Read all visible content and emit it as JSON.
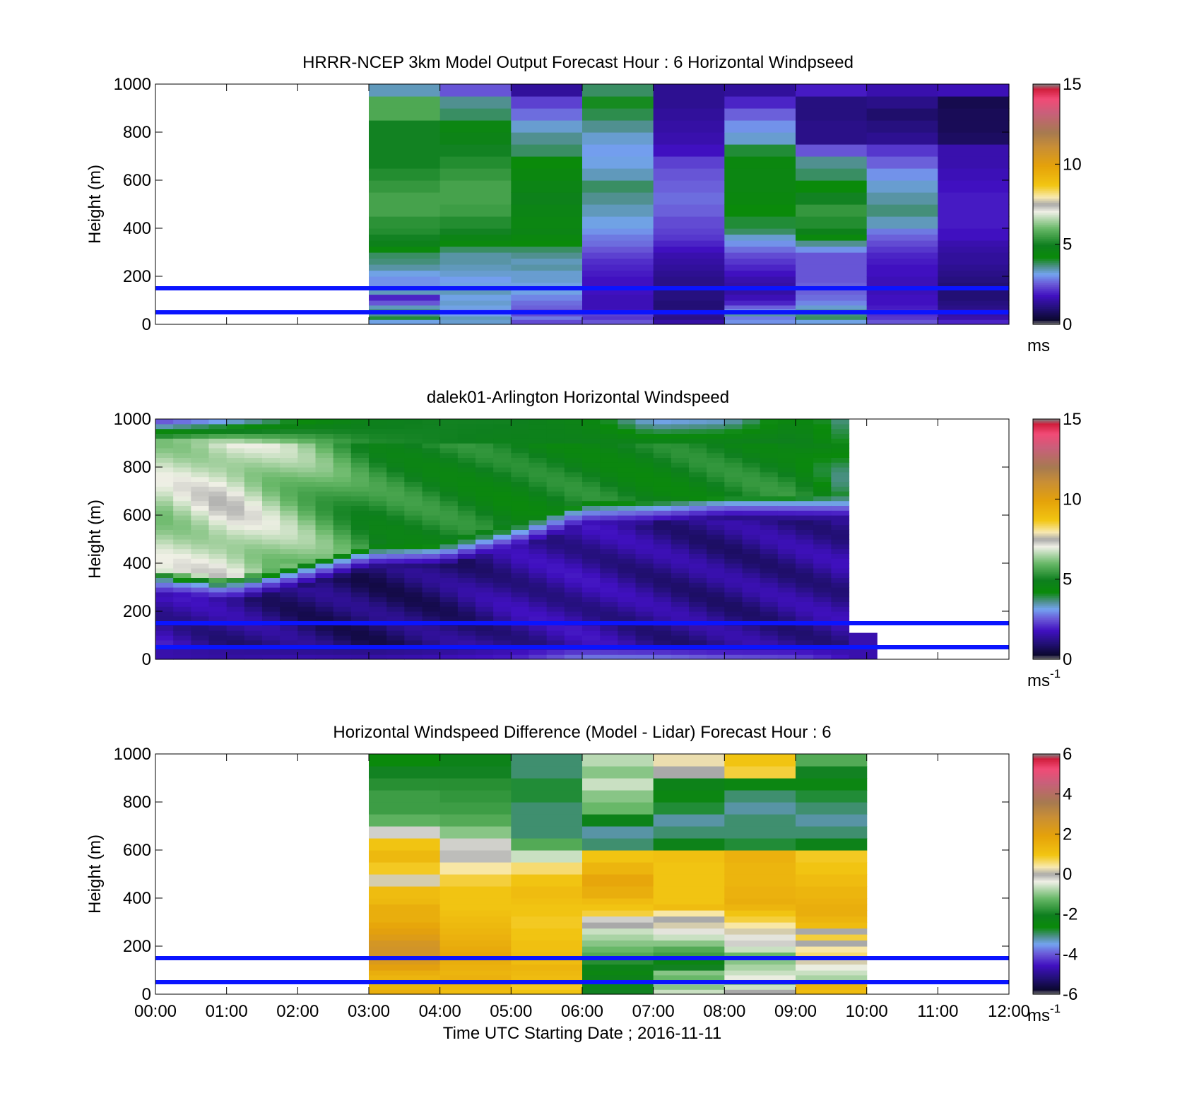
{
  "figure": {
    "xlabel": "Time UTC  Starting Date ; 2016-11-11",
    "reference_lines_m": [
      50,
      150
    ],
    "reference_line_color": "#0a14ff"
  },
  "chart_data": [
    {
      "type": "heatmap",
      "title": "HRRR-NCEP 3km Model Output   Forecast Hour : 6 Horizontal Windpseed",
      "ylabel": "Height (m)",
      "x_ticks": [
        "00:00",
        "01:00",
        "02:00",
        "03:00",
        "04:00",
        "05:00",
        "06:00",
        "07:00",
        "08:00",
        "09:00",
        "10:00",
        "11:00",
        "12:00"
      ],
      "y_ticks": [
        "0",
        "200",
        "400",
        "600",
        "800",
        "1000"
      ],
      "xlim_hours": [
        0,
        12
      ],
      "ylim": [
        0,
        1000
      ],
      "colorbar": {
        "ticks": [
          "0",
          "5",
          "10",
          "15"
        ],
        "tick_values": [
          0,
          5,
          10,
          15
        ],
        "unit": "ms",
        "unit_sup": "",
        "range": [
          0,
          15
        ]
      },
      "x_start_hours": [
        3,
        4,
        5,
        6,
        7,
        8,
        9,
        10,
        11
      ],
      "column_width_hours": 1,
      "height_levels_m": [
        20,
        35,
        50,
        65,
        80,
        100,
        125,
        150,
        175,
        200,
        225,
        250,
        275,
        300,
        325,
        350,
        375,
        400,
        450,
        500,
        550,
        600,
        650,
        700,
        750,
        800,
        850,
        900,
        950,
        1000
      ],
      "values": [
        [
          3.2,
          4.0,
          3.6,
          3.7,
          3.4,
          2.5,
          2.0,
          3.4,
          3.0,
          3.0,
          3.2,
          3.5,
          3.7,
          3.8,
          4.3,
          4.8,
          5.0,
          5.2,
          5.3,
          5.6,
          5.6,
          5.4,
          5.2,
          5.0,
          5.0,
          5.0,
          5.0,
          5.7,
          5.7,
          3.4
        ],
        [
          3.3,
          3.4,
          3.1,
          3.0,
          3.2,
          3.3,
          3.2,
          3.4,
          3.2,
          3.1,
          3.3,
          3.4,
          3.5,
          3.5,
          3.8,
          4.3,
          4.6,
          5.0,
          5.2,
          5.5,
          5.6,
          5.6,
          5.4,
          5.2,
          5.0,
          4.7,
          4.5,
          3.8,
          3.6,
          2.5
        ],
        [
          2.4,
          2.8,
          2.4,
          2.4,
          2.6,
          2.7,
          2.9,
          3.2,
          3.2,
          3.3,
          3.3,
          3.5,
          3.4,
          3.6,
          3.8,
          4.2,
          4.4,
          4.6,
          4.5,
          4.6,
          4.8,
          4.6,
          4.4,
          4.2,
          3.8,
          3.6,
          3.3,
          2.7,
          2.3,
          1.4
        ],
        [
          2.5,
          2.2,
          2.3,
          1.8,
          1.7,
          1.7,
          1.7,
          1.8,
          1.8,
          1.8,
          1.9,
          2.0,
          2.1,
          2.3,
          2.5,
          2.7,
          2.8,
          3.0,
          3.2,
          3.4,
          3.6,
          3.8,
          3.4,
          3.2,
          3.1,
          3.3,
          3.6,
          3.9,
          4.1,
          3.8
        ],
        [
          1.5,
          1.2,
          1.3,
          1.1,
          1.0,
          1.0,
          1.1,
          1.1,
          1.2,
          1.2,
          1.3,
          1.4,
          1.5,
          1.6,
          1.8,
          2.0,
          2.2,
          2.3,
          2.4,
          2.6,
          2.7,
          2.6,
          2.5,
          2.3,
          1.8,
          1.6,
          1.5,
          1.4,
          1.3,
          1.3
        ],
        [
          3.0,
          2.8,
          3.5,
          3.0,
          2.6,
          2.0,
          1.7,
          1.5,
          1.5,
          1.6,
          1.8,
          2.0,
          2.2,
          2.4,
          2.7,
          3.0,
          3.3,
          3.8,
          4.0,
          4.2,
          4.4,
          4.5,
          4.5,
          4.4,
          4.0,
          3.3,
          3.0,
          2.6,
          2.0,
          1.4
        ],
        [
          3.2,
          3.8,
          3.7,
          3.5,
          3.3,
          2.9,
          2.7,
          2.6,
          2.6,
          2.5,
          2.5,
          2.5,
          2.5,
          2.5,
          3.0,
          3.6,
          4.3,
          4.8,
          5.2,
          5.4,
          5.0,
          4.2,
          3.8,
          3.6,
          2.5,
          1.2,
          1.2,
          1.1,
          1.1,
          1.9
        ],
        [
          2.5,
          2.2,
          2.1,
          2.0,
          1.9,
          1.8,
          1.8,
          1.7,
          1.7,
          1.7,
          1.8,
          1.8,
          1.9,
          2.0,
          2.2,
          2.4,
          2.6,
          2.8,
          3.4,
          3.7,
          3.5,
          3.3,
          3.0,
          2.6,
          2.2,
          1.3,
          1.1,
          0.9,
          1.2,
          1.6
        ],
        [
          2.0,
          1.6,
          1.5,
          1.4,
          1.2,
          1.1,
          1.0,
          1.0,
          1.0,
          1.1,
          1.2,
          1.3,
          1.4,
          1.4,
          1.5,
          1.6,
          1.8,
          1.8,
          1.9,
          1.9,
          1.9,
          1.8,
          1.7,
          1.6,
          1.6,
          0.8,
          0.7,
          0.7,
          0.6,
          1.7
        ]
      ]
    },
    {
      "type": "heatmap",
      "title": "dalek01-Arlington  Horizontal Windspeed",
      "ylabel": "Height (m)",
      "x_ticks": [
        "00:00",
        "01:00",
        "02:00",
        "03:00",
        "04:00",
        "05:00",
        "06:00",
        "07:00",
        "08:00",
        "09:00",
        "10:00",
        "11:00",
        "12:00"
      ],
      "y_ticks": [
        "0",
        "200",
        "400",
        "600",
        "800",
        "1000"
      ],
      "xlim_hours": [
        0,
        12
      ],
      "ylim": [
        0,
        1000
      ],
      "colorbar": {
        "ticks": [
          "0",
          "5",
          "10",
          "15"
        ],
        "tick_values": [
          0,
          5,
          10,
          15
        ],
        "unit": "ms",
        "unit_sup": "-1",
        "range": [
          0,
          15
        ]
      },
      "time_step_hours": 0.25,
      "time_end_hours": 9.75,
      "layer_height_m": 20,
      "profile": {
        "sample_hours": [
          0,
          1,
          2,
          3,
          4,
          5,
          6,
          7,
          8,
          9,
          9.75
        ],
        "transition_height_m": [
          330,
          300,
          360,
          440,
          450,
          520,
          620,
          630,
          650,
          650,
          650
        ],
        "upper_speed": [
          6.5,
          7.0,
          6.2,
          5.2,
          5.0,
          4.8,
          4.9,
          4.8,
          4.9,
          5.0,
          4.0
        ],
        "upper_top_speed": [
          2.0,
          2.8,
          4.0,
          4.8,
          5.0,
          5.0,
          4.6,
          3.0,
          3.2,
          4.6,
          3.5
        ],
        "lower_speed": [
          1.6,
          1.3,
          1.0,
          0.9,
          1.0,
          1.4,
          1.5,
          1.3,
          1.2,
          1.3,
          1.4
        ],
        "surface_speed": [
          1.6,
          1.5,
          1.7,
          1.6,
          1.8,
          2.0,
          3.0,
          3.0,
          2.7,
          2.5,
          1.8
        ]
      },
      "extra_segment": {
        "start_hours": 9.75,
        "end_hours": 10.15,
        "top_m": 110,
        "speed": 1.6
      }
    },
    {
      "type": "heatmap",
      "title": "Horizontal Windspeed Difference (Model - Lidar) Forecast Hour : 6",
      "ylabel": "Height (m)",
      "x_ticks": [
        "00:00",
        "01:00",
        "02:00",
        "03:00",
        "04:00",
        "05:00",
        "06:00",
        "07:00",
        "08:00",
        "09:00",
        "10:00",
        "11:00",
        "12:00"
      ],
      "y_ticks": [
        "0",
        "200",
        "400",
        "600",
        "800",
        "1000"
      ],
      "xlim_hours": [
        0,
        12
      ],
      "ylim": [
        0,
        1000
      ],
      "colorbar": {
        "ticks": [
          "-6",
          "-4",
          "-2",
          "0",
          "2",
          "4",
          "6"
        ],
        "tick_values": [
          -6,
          -4,
          -2,
          0,
          2,
          4,
          6
        ],
        "unit": "ms",
        "unit_sup": "-1",
        "range": [
          -6,
          6
        ]
      },
      "x_start_hours": [
        3,
        4,
        5,
        6,
        7,
        8,
        9
      ],
      "column_width_hours": 1,
      "height_levels_m": [
        20,
        40,
        60,
        80,
        100,
        125,
        150,
        175,
        200,
        225,
        250,
        275,
        300,
        325,
        350,
        375,
        400,
        450,
        500,
        550,
        600,
        650,
        700,
        750,
        800,
        850,
        900,
        950,
        1000
      ],
      "values": [
        [
          1.6,
          1.4,
          1.2,
          1.4,
          1.6,
          2.0,
          2.3,
          2.6,
          2.6,
          2.5,
          2.2,
          2.0,
          1.8,
          1.6,
          1.6,
          1.6,
          1.3,
          1.2,
          0.2,
          0.9,
          1.3,
          1.0,
          -0.2,
          -1.3,
          -1.6,
          -1.6,
          -1.8,
          -2.0,
          -2.6
        ],
        [
          1.2,
          1.4,
          1.6,
          1.5,
          1.4,
          1.5,
          1.6,
          1.8,
          1.7,
          1.6,
          1.5,
          1.4,
          1.3,
          1.2,
          1.1,
          1.0,
          1.0,
          1.0,
          0.8,
          0.4,
          -0.1,
          -0.2,
          -1.0,
          -1.4,
          -1.6,
          -1.7,
          -1.8,
          -2.0,
          -2.2
        ],
        [
          1.0,
          0.9,
          1.1,
          1.2,
          1.3,
          1.4,
          1.2,
          1.2,
          1.1,
          1.1,
          1.0,
          1.0,
          0.9,
          0.9,
          1.0,
          1.0,
          1.1,
          1.2,
          1.0,
          0.6,
          -0.6,
          -1.4,
          -3.0,
          -3.0,
          -3.0,
          -2.8,
          -2.8,
          -3.0,
          -3.0
        ],
        [
          -2.0,
          -2.2,
          -2.4,
          -2.2,
          -2.4,
          -2.2,
          -1.8,
          -1.4,
          -1.2,
          -1.0,
          -0.8,
          -0.6,
          0.0,
          -0.2,
          0.8,
          1.0,
          1.2,
          1.6,
          1.8,
          1.4,
          1.0,
          -3.0,
          -3.2,
          -2.2,
          -1.2,
          -1.0,
          -0.6,
          -1.0,
          -0.7
        ],
        [
          -0.6,
          -1.0,
          -0.8,
          -1.2,
          -1.0,
          -2.0,
          -2.4,
          -1.6,
          -1.4,
          -1.0,
          -0.6,
          -0.3,
          0.2,
          0.0,
          0.4,
          1.2,
          1.0,
          1.0,
          1.0,
          1.0,
          1.1,
          -2.2,
          -3.0,
          -3.2,
          -2.8,
          -2.4,
          -2.2,
          0.0,
          0.3
        ],
        [
          0.0,
          -0.6,
          -1.0,
          -0.4,
          -0.6,
          -0.8,
          -1.0,
          -1.2,
          -0.6,
          -0.2,
          -0.3,
          0.2,
          0.4,
          0.8,
          1.0,
          1.4,
          1.6,
          1.5,
          1.4,
          1.4,
          1.5,
          -2.8,
          -3.0,
          -3.0,
          -3.2,
          -3.0,
          -2.4,
          0.8,
          1.0
        ],
        [
          1.2,
          1.4,
          1.4,
          -0.8,
          -0.6,
          -0.4,
          0.2,
          0.6,
          0.4,
          0.0,
          0.8,
          0.0,
          1.2,
          1.4,
          1.6,
          1.6,
          1.5,
          1.4,
          1.2,
          1.0,
          0.9,
          -2.2,
          -3.0,
          -3.2,
          -3.0,
          -2.8,
          -2.4,
          -2.0,
          -1.4
        ]
      ]
    }
  ]
}
